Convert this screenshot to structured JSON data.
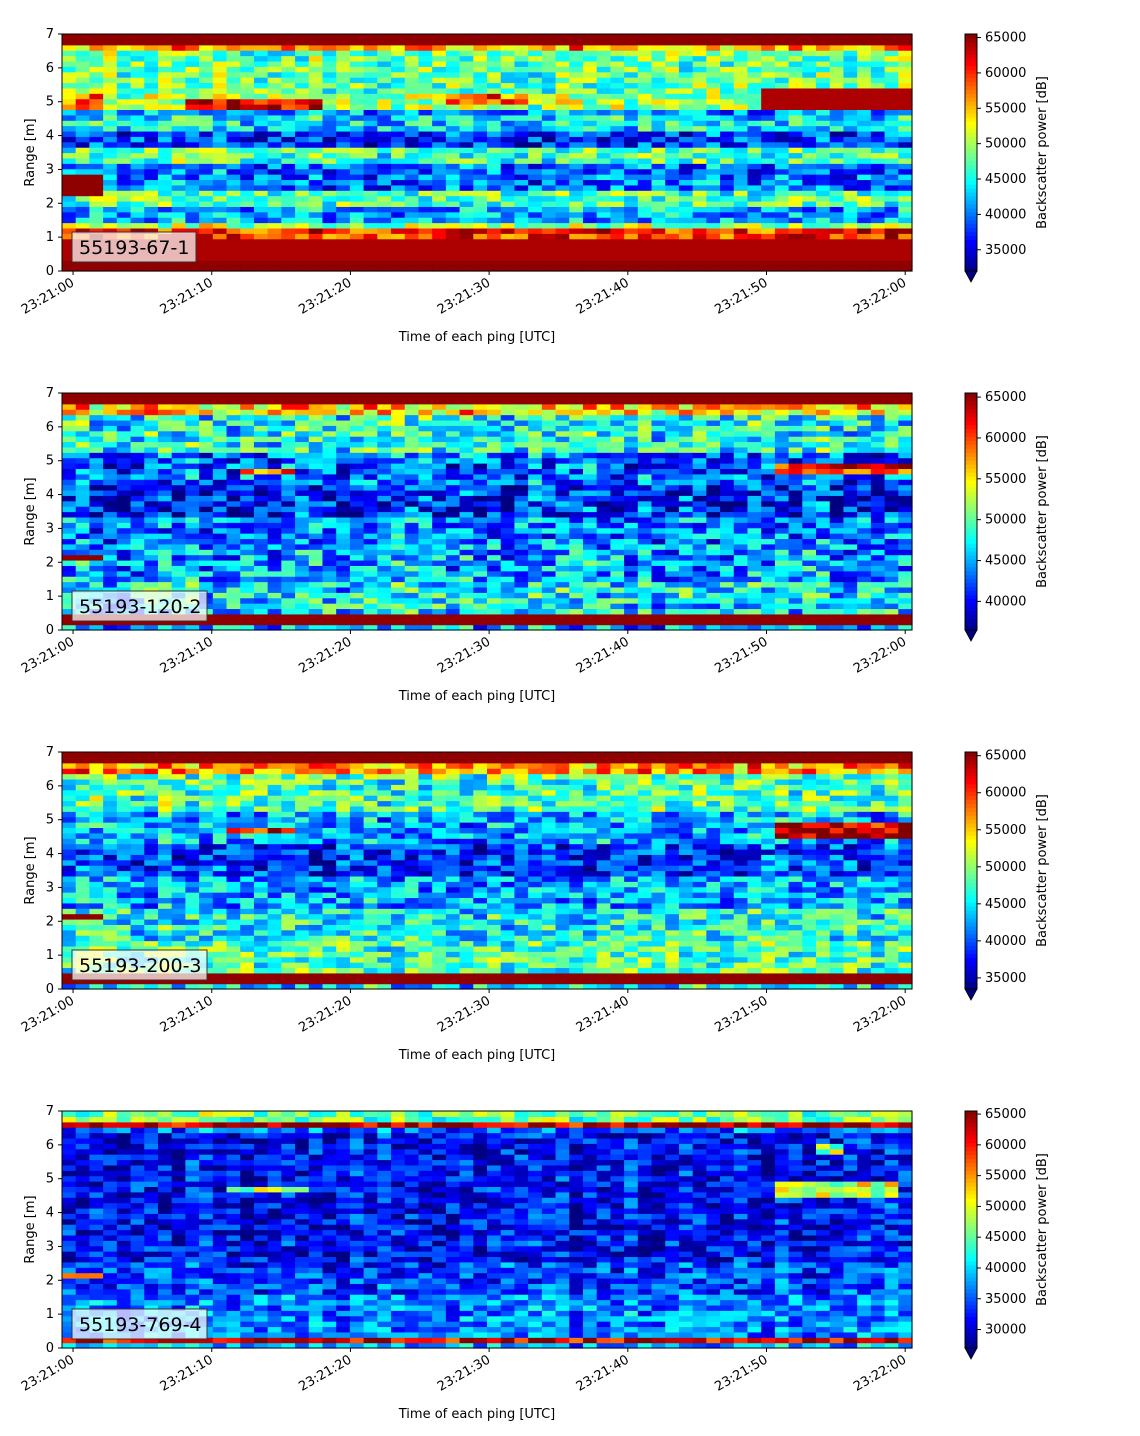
{
  "chart_data": [
    {
      "type": "heatmap",
      "label": "55193-67-1",
      "xlabel": "Time of each ping [UTC]",
      "ylabel": "Range [m]",
      "colorbar_label": "Backscatter power [dB]",
      "colormap": "jet",
      "x_ticks": [
        "23:21:00",
        "23:21:10",
        "23:21:20",
        "23:21:30",
        "23:21:40",
        "23:21:50",
        "23:22:00"
      ],
      "y_ticks": [
        0,
        1,
        2,
        3,
        4,
        5,
        6,
        7
      ],
      "ylim": [
        0,
        7
      ],
      "color_range": [
        32000,
        65500
      ],
      "colorbar_ticks": [
        35000,
        40000,
        45000,
        50000,
        55000,
        60000,
        65000
      ],
      "bands": [
        {
          "range": [
            0.0,
            0.25
          ],
          "level": 65000
        },
        {
          "range": [
            0.25,
            0.95
          ],
          "level": 64000
        },
        {
          "range": [
            0.95,
            1.2
          ],
          "level": 60000
        },
        {
          "range": [
            1.2,
            1.5
          ],
          "level": 50000
        },
        {
          "range": [
            1.5,
            1.9
          ],
          "level": 42000
        },
        {
          "range": [
            1.9,
            2.4
          ],
          "level": 47000
        },
        {
          "range": [
            2.4,
            3.2
          ],
          "level": 40000
        },
        {
          "range": [
            3.2,
            3.6
          ],
          "level": 47000
        },
        {
          "range": [
            3.6,
            4.1
          ],
          "level": 38000
        },
        {
          "range": [
            4.1,
            4.6
          ],
          "level": 44000
        },
        {
          "range": [
            4.6,
            4.8
          ],
          "level": 41000
        },
        {
          "range": [
            4.8,
            5.2
          ],
          "level": 50000
        },
        {
          "range": [
            5.2,
            6.5
          ],
          "level": 48000
        },
        {
          "range": [
            6.5,
            6.7
          ],
          "level": 56000
        },
        {
          "range": [
            6.7,
            7.0
          ],
          "level": 65000
        }
      ],
      "features": [
        {
          "time": [
            0,
            2
          ],
          "range": [
            2.2,
            2.8
          ],
          "level": 65000
        },
        {
          "time": [
            0,
            2
          ],
          "range": [
            4.8,
            5.2
          ],
          "level": 58000
        },
        {
          "time": [
            9,
            18
          ],
          "range": [
            4.75,
            5.15
          ],
          "level": 63000
        },
        {
          "time": [
            28,
            33
          ],
          "range": [
            4.95,
            5.25
          ],
          "level": 59000
        },
        {
          "time": [
            51,
            61
          ],
          "range": [
            4.8,
            5.35
          ],
          "level": 64000
        }
      ]
    },
    {
      "type": "heatmap",
      "label": "55193-120-2",
      "xlabel": "Time of each ping [UTC]",
      "ylabel": "Range [m]",
      "colorbar_label": "Backscatter power [dB]",
      "colormap": "jet",
      "x_ticks": [
        "23:21:00",
        "23:21:10",
        "23:21:20",
        "23:21:30",
        "23:21:40",
        "23:21:50",
        "23:22:00"
      ],
      "y_ticks": [
        0,
        1,
        2,
        3,
        4,
        5,
        6,
        7
      ],
      "ylim": [
        0,
        7
      ],
      "color_range": [
        36500,
        65500
      ],
      "colorbar_ticks": [
        40000,
        45000,
        50000,
        55000,
        60000,
        65000
      ],
      "bands": [
        {
          "range": [
            0.0,
            0.1
          ],
          "level": 45000
        },
        {
          "range": [
            0.1,
            0.5
          ],
          "level": 65000
        },
        {
          "range": [
            0.5,
            1.5
          ],
          "level": 47000
        },
        {
          "range": [
            1.5,
            2.5
          ],
          "level": 45000
        },
        {
          "range": [
            2.5,
            3.3
          ],
          "level": 44000
        },
        {
          "range": [
            3.3,
            4.3
          ],
          "level": 41000
        },
        {
          "range": [
            4.3,
            5.2
          ],
          "level": 43000
        },
        {
          "range": [
            5.2,
            6.4
          ],
          "level": 48000
        },
        {
          "range": [
            6.4,
            6.7
          ],
          "level": 56000
        },
        {
          "range": [
            6.7,
            7.0
          ],
          "level": 65000
        }
      ],
      "features": [
        {
          "time": [
            0,
            2
          ],
          "range": [
            2.0,
            2.25
          ],
          "level": 65000
        },
        {
          "time": [
            13,
            16
          ],
          "range": [
            4.65,
            4.85
          ],
          "level": 60000
        },
        {
          "time": [
            52,
            61
          ],
          "range": [
            4.6,
            4.95
          ],
          "level": 62000
        }
      ]
    },
    {
      "type": "heatmap",
      "label": "55193-200-3",
      "xlabel": "Time of each ping [UTC]",
      "ylabel": "Range [m]",
      "colorbar_label": "Backscatter power [dB]",
      "colormap": "jet",
      "x_ticks": [
        "23:21:00",
        "23:21:10",
        "23:21:20",
        "23:21:30",
        "23:21:40",
        "23:21:50",
        "23:22:00"
      ],
      "y_ticks": [
        0,
        1,
        2,
        3,
        4,
        5,
        6,
        7
      ],
      "ylim": [
        0,
        7
      ],
      "color_range": [
        33500,
        65500
      ],
      "colorbar_ticks": [
        35000,
        40000,
        45000,
        50000,
        55000,
        60000,
        65000
      ],
      "bands": [
        {
          "range": [
            0.0,
            0.1
          ],
          "level": 45000
        },
        {
          "range": [
            0.1,
            0.4
          ],
          "level": 65000
        },
        {
          "range": [
            0.4,
            1.5
          ],
          "level": 48000
        },
        {
          "range": [
            1.5,
            2.4
          ],
          "level": 46000
        },
        {
          "range": [
            2.4,
            3.3
          ],
          "level": 43000
        },
        {
          "range": [
            3.3,
            4.3
          ],
          "level": 39000
        },
        {
          "range": [
            4.3,
            5.3
          ],
          "level": 43000
        },
        {
          "range": [
            5.3,
            6.4
          ],
          "level": 48000
        },
        {
          "range": [
            6.4,
            6.7
          ],
          "level": 57000
        },
        {
          "range": [
            6.7,
            7.0
          ],
          "level": 65000
        }
      ],
      "features": [
        {
          "time": [
            0,
            2
          ],
          "range": [
            2.0,
            2.25
          ],
          "level": 65000
        },
        {
          "time": [
            12,
            16
          ],
          "range": [
            4.6,
            4.8
          ],
          "level": 62000
        },
        {
          "time": [
            52,
            61
          ],
          "range": [
            4.5,
            4.95
          ],
          "level": 63000
        }
      ]
    },
    {
      "type": "heatmap",
      "label": "55193-769-4",
      "xlabel": "Time of each ping [UTC]",
      "ylabel": "Range [m]",
      "colorbar_label": "Backscatter power [dB]",
      "colormap": "jet",
      "x_ticks": [
        "23:21:00",
        "23:21:10",
        "23:21:20",
        "23:21:30",
        "23:21:40",
        "23:21:50",
        "23:22:00"
      ],
      "y_ticks": [
        0,
        1,
        2,
        3,
        4,
        5,
        6,
        7
      ],
      "ylim": [
        0,
        7
      ],
      "color_range": [
        27000,
        65500
      ],
      "colorbar_ticks": [
        30000,
        35000,
        40000,
        45000,
        50000,
        55000,
        60000,
        65000
      ],
      "bands": [
        {
          "range": [
            0.0,
            0.2
          ],
          "level": 38000
        },
        {
          "range": [
            0.2,
            0.35
          ],
          "level": 62000
        },
        {
          "range": [
            0.35,
            1.6
          ],
          "level": 37000
        },
        {
          "range": [
            1.6,
            2.6
          ],
          "level": 34000
        },
        {
          "range": [
            2.6,
            6.3
          ],
          "level": 32000
        },
        {
          "range": [
            6.3,
            6.5
          ],
          "level": 36000
        },
        {
          "range": [
            6.5,
            6.75
          ],
          "level": 63000
        },
        {
          "range": [
            6.75,
            7.0
          ],
          "level": 46000
        }
      ],
      "features": [
        {
          "time": [
            0,
            2
          ],
          "range": [
            2.0,
            2.2
          ],
          "level": 60000
        },
        {
          "time": [
            12,
            17
          ],
          "range": [
            4.55,
            4.75
          ],
          "level": 50000
        },
        {
          "time": [
            52,
            60
          ],
          "range": [
            4.5,
            4.9
          ],
          "level": 49000
        },
        {
          "time": [
            55,
            56
          ],
          "range": [
            5.8,
            6.0
          ],
          "level": 48000
        }
      ]
    }
  ]
}
